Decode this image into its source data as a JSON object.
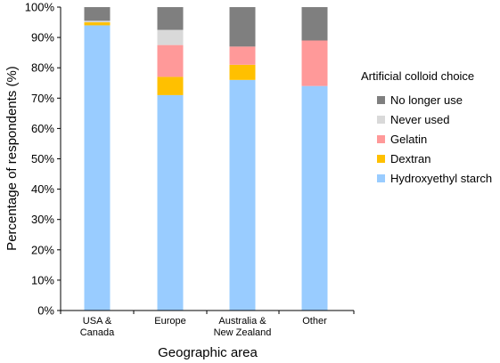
{
  "chart_data": {
    "type": "bar",
    "stacked": true,
    "categories": [
      [
        "USA &",
        "Canada"
      ],
      [
        "Europe"
      ],
      [
        "Australia &",
        "New Zealand"
      ],
      [
        "Other"
      ]
    ],
    "series": [
      {
        "name": "Hydroxyethyl starch",
        "color": "#99ccff",
        "values": [
          94,
          71,
          76,
          74
        ]
      },
      {
        "name": "Dextran",
        "color": "#ffc000",
        "values": [
          1,
          6,
          5,
          0
        ]
      },
      {
        "name": "Gelatin",
        "color": "#ff9999",
        "values": [
          0,
          10.5,
          6,
          15
        ]
      },
      {
        "name": "Never used",
        "color": "#d9d9d9",
        "values": [
          0.5,
          5,
          0,
          0
        ]
      },
      {
        "name": "No longer use",
        "color": "#7f7f7f",
        "values": [
          4.5,
          7.5,
          13,
          11
        ]
      }
    ],
    "legend_title": "Artificial colloid choice",
    "legend_order": [
      "No longer use",
      "Never used",
      "Gelatin",
      "Dextran",
      "Hydroxyethyl starch"
    ],
    "legend_position": "right",
    "xlabel": "Geographic area",
    "ylabel": "Percentage of respondents (%)",
    "ylim": [
      0,
      100
    ],
    "yticks": [
      "0%",
      "10%",
      "20%",
      "30%",
      "40%",
      "50%",
      "60%",
      "70%",
      "80%",
      "90%",
      "100%"
    ],
    "grid": false
  }
}
